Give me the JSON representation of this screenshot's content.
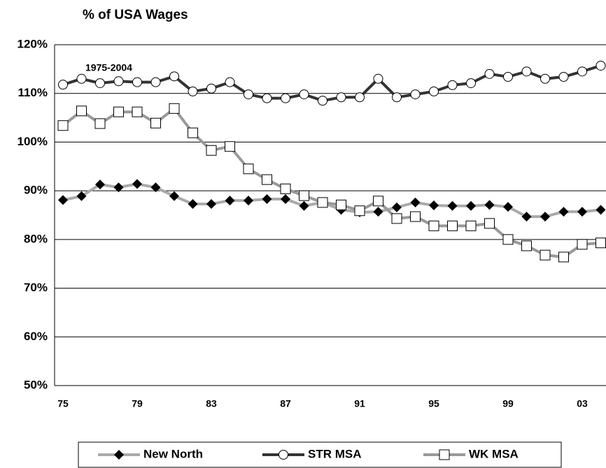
{
  "chart_data": {
    "type": "line",
    "title": "% of USA Wages",
    "annotation": "1975-2004",
    "categories": [
      "75",
      null,
      null,
      null,
      "79",
      null,
      null,
      null,
      "83",
      null,
      null,
      null,
      "87",
      null,
      null,
      null,
      "91",
      null,
      null,
      null,
      "95",
      null,
      null,
      null,
      "99",
      null,
      null,
      null,
      "03",
      null
    ],
    "ylim": [
      50,
      120
    ],
    "yticks": [
      {
        "value": 50,
        "label": "50%"
      },
      {
        "value": 60,
        "label": "60%"
      },
      {
        "value": 70,
        "label": "70%"
      },
      {
        "value": 80,
        "label": "80%"
      },
      {
        "value": 90,
        "label": "90%"
      },
      {
        "value": 100,
        "label": "100%"
      },
      {
        "value": 110,
        "label": "110%"
      },
      {
        "value": 120,
        "label": "120%"
      }
    ],
    "grid": true,
    "legend": "bottom",
    "series": [
      {
        "name": "New North",
        "color": "#aaaaaa",
        "marker": "diamond",
        "values": [
          88.1,
          88.9,
          91.3,
          90.7,
          91.4,
          90.7,
          88.9,
          87.3,
          87.3,
          88.0,
          88.0,
          88.3,
          88.3,
          86.9,
          87.6,
          86.1,
          85.6,
          85.7,
          86.6,
          87.6,
          87.0,
          86.9,
          86.9,
          87.1,
          86.7,
          84.7,
          84.7,
          85.7,
          85.7,
          86.1
        ]
      },
      {
        "name": "STR MSA",
        "color": "#333333",
        "marker": "circle",
        "values": [
          111.8,
          113.0,
          112.1,
          112.5,
          112.3,
          112.3,
          113.5,
          110.4,
          111.0,
          112.3,
          109.8,
          109.0,
          109.0,
          109.8,
          108.5,
          109.2,
          109.2,
          113.0,
          109.2,
          109.8,
          110.4,
          111.7,
          112.1,
          114.0,
          113.4,
          114.5,
          113.0,
          113.4,
          114.5,
          115.7
        ]
      },
      {
        "name": "WK MSA",
        "color": "#999999",
        "marker": "square",
        "values": [
          103.4,
          106.4,
          103.8,
          106.2,
          106.2,
          103.9,
          106.9,
          101.9,
          98.3,
          99.1,
          94.5,
          92.3,
          90.4,
          89.0,
          87.6,
          87.1,
          85.9,
          87.9,
          84.3,
          84.7,
          82.8,
          82.8,
          82.8,
          83.3,
          80.0,
          78.7,
          76.8,
          76.4,
          79.0,
          79.3
        ]
      }
    ]
  }
}
